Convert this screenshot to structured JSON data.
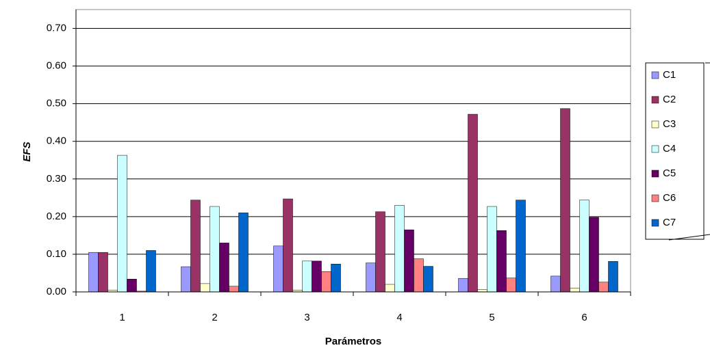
{
  "chart_data": {
    "type": "bar",
    "x_label": "Parámetros",
    "y_label": "EFS",
    "categories": [
      "1",
      "2",
      "3",
      "4",
      "5",
      "6"
    ],
    "series": [
      {
        "name": "C1",
        "color": "#9999ff",
        "values": [
          0.105,
          0.067,
          0.122,
          0.077,
          0.036,
          0.042
        ]
      },
      {
        "name": "C2",
        "color": "#993366",
        "values": [
          0.105,
          0.244,
          0.247,
          0.213,
          0.472,
          0.487
        ]
      },
      {
        "name": "C3",
        "color": "#ffffcc",
        "values": [
          0.005,
          0.022,
          0.005,
          0.02,
          0.006,
          0.01
        ]
      },
      {
        "name": "C4",
        "color": "#ccffff",
        "values": [
          0.363,
          0.227,
          0.082,
          0.23,
          0.227,
          0.244
        ]
      },
      {
        "name": "C5",
        "color": "#660066",
        "values": [
          0.034,
          0.13,
          0.082,
          0.165,
          0.163,
          0.198
        ]
      },
      {
        "name": "C6",
        "color": "#ff8080",
        "values": [
          0.002,
          0.015,
          0.054,
          0.088,
          0.037,
          0.026
        ]
      },
      {
        "name": "C7",
        "color": "#0066cc",
        "values": [
          0.11,
          0.21,
          0.074,
          0.068,
          0.244,
          0.081
        ]
      }
    ],
    "ylim": [
      0,
      0.75
    ],
    "yticks": [
      {
        "value": 0,
        "label": "0.00"
      },
      {
        "value": 0.1,
        "label": "0.10"
      },
      {
        "value": 0.2,
        "label": "0.20"
      },
      {
        "value": 0.3,
        "label": "0.30"
      },
      {
        "value": 0.4,
        "label": "0.40"
      },
      {
        "value": 0.5,
        "label": "0.50"
      },
      {
        "value": 0.6,
        "label": "0.60"
      },
      {
        "value": 0.7,
        "label": "0.70"
      }
    ],
    "grid": true
  }
}
